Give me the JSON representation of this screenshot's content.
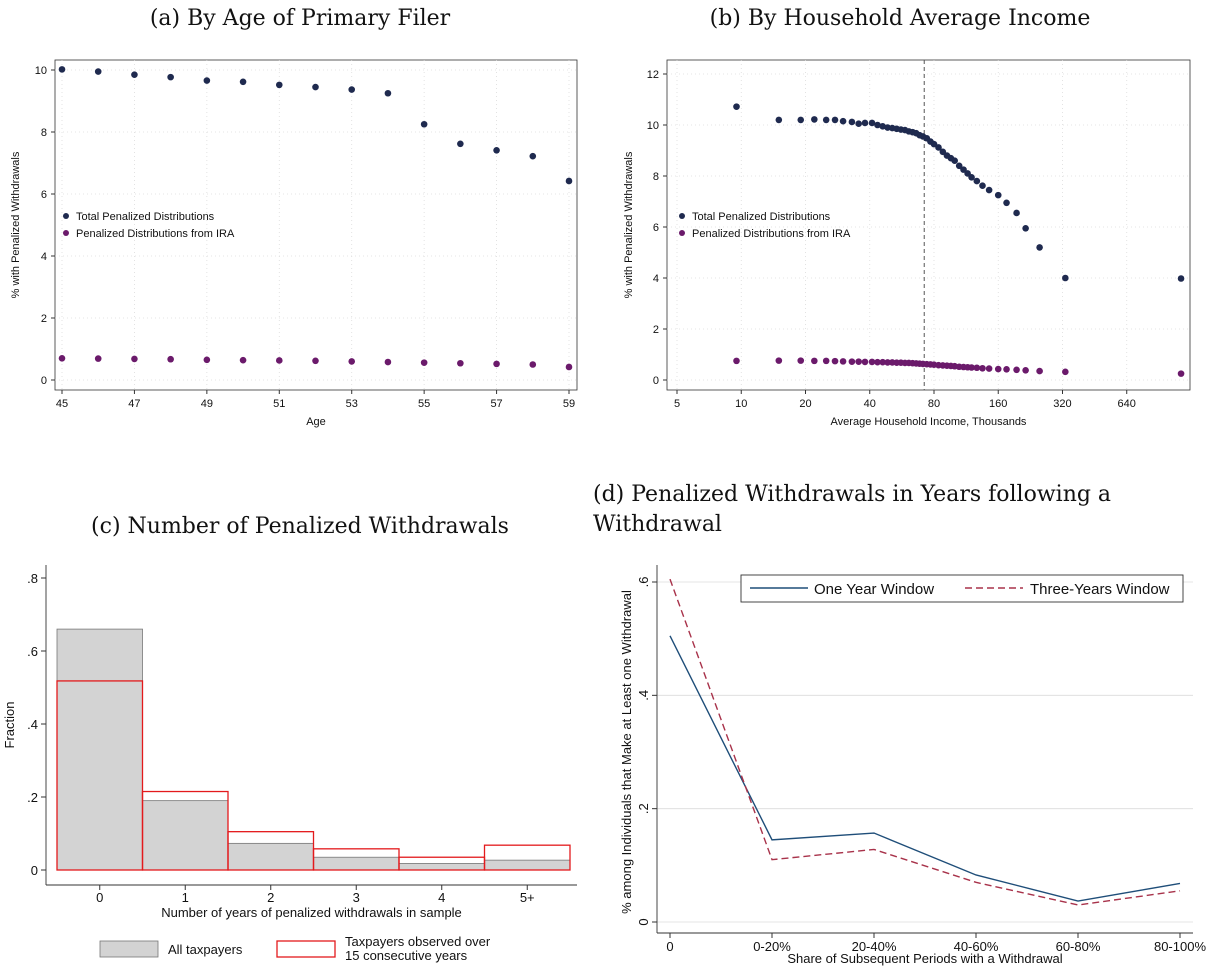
{
  "panels": {
    "a": {
      "title": "(a) By Age of Primary Filer"
    },
    "b": {
      "title": "(b) By Household Average Income"
    },
    "c": {
      "title": "(c) Number of Penalized Withdrawals"
    },
    "d": {
      "title": "(d) Penalized Withdrawals in Years following a Withdrawal"
    }
  },
  "colors": {
    "navy": "#1f2a4f",
    "purple": "#6b1a6b",
    "gray_bar": "#d3d3d3",
    "red": "#e31a1c",
    "line_solid": "#1f4e79",
    "line_dash": "#a8324a",
    "grid": "#dcdcdc"
  },
  "chart_data": [
    {
      "type": "scatter",
      "xlabel": "Age",
      "ylabel": "% with Penalized Withdrawals",
      "xlim": [
        45,
        59
      ],
      "ylim": [
        0,
        10
      ],
      "xticks": [
        "45",
        "47",
        "49",
        "51",
        "53",
        "55",
        "57",
        "59"
      ],
      "yticks": [
        "0",
        "2",
        "4",
        "6",
        "8",
        "10"
      ],
      "legend_position": "left-middle",
      "x": [
        45,
        46,
        47,
        48,
        49,
        50,
        51,
        52,
        53,
        54,
        55,
        56,
        57,
        58,
        59
      ],
      "series": [
        {
          "name": "Total Penalized Distributions",
          "color": "#1f2a4f",
          "values": [
            10.02,
            9.95,
            9.85,
            9.77,
            9.66,
            9.62,
            9.52,
            9.45,
            9.37,
            9.25,
            8.25,
            7.62,
            7.41,
            7.22,
            6.42
          ]
        },
        {
          "name": "Penalized Distributions from IRA",
          "color": "#6b1a6b",
          "values": [
            0.7,
            0.69,
            0.68,
            0.67,
            0.65,
            0.64,
            0.63,
            0.62,
            0.6,
            0.58,
            0.56,
            0.54,
            0.52,
            0.5,
            0.42
          ]
        }
      ]
    },
    {
      "type": "scatter",
      "xscale": "log2",
      "xlabel": "Average Household Income, Thousands",
      "ylabel": "% with Penalized Withdrawals",
      "xlim": [
        5,
        1200
      ],
      "ylim": [
        0,
        12
      ],
      "xticks": [
        "5",
        "10",
        "20",
        "40",
        "80",
        "160",
        "320",
        "640"
      ],
      "yticks": [
        "0",
        "2",
        "4",
        "6",
        "8",
        "10",
        "12"
      ],
      "vline": 72,
      "legend_position": "left-middle",
      "x": [
        9.5,
        15,
        19,
        22,
        25,
        27.5,
        30,
        33,
        35.5,
        38,
        41,
        43.5,
        46,
        48.5,
        51,
        53.5,
        56,
        58.5,
        61,
        63.5,
        66,
        68.5,
        71,
        74,
        77,
        80,
        84,
        88,
        92,
        96,
        100,
        105,
        110,
        115,
        120,
        127,
        135,
        145,
        160,
        175,
        195,
        215,
        250,
        330,
        1150
      ],
      "series": [
        {
          "name": "Total Penalized Distributions",
          "color": "#1f2a4f",
          "values": [
            10.72,
            10.2,
            10.2,
            10.22,
            10.2,
            10.2,
            10.15,
            10.12,
            10.05,
            10.08,
            10.08,
            10.0,
            9.95,
            9.9,
            9.88,
            9.85,
            9.82,
            9.8,
            9.75,
            9.72,
            9.68,
            9.6,
            9.55,
            9.48,
            9.35,
            9.25,
            9.12,
            8.95,
            8.8,
            8.7,
            8.6,
            8.4,
            8.25,
            8.1,
            7.95,
            7.8,
            7.62,
            7.45,
            7.25,
            6.95,
            6.55,
            5.95,
            5.2,
            4.0,
            3.98
          ]
        },
        {
          "name": "Penalized Distributions from IRA",
          "color": "#6b1a6b",
          "values": [
            0.75,
            0.76,
            0.76,
            0.75,
            0.75,
            0.74,
            0.73,
            0.72,
            0.72,
            0.71,
            0.71,
            0.7,
            0.7,
            0.69,
            0.69,
            0.68,
            0.68,
            0.67,
            0.67,
            0.66,
            0.65,
            0.64,
            0.63,
            0.62,
            0.61,
            0.6,
            0.58,
            0.57,
            0.56,
            0.55,
            0.54,
            0.52,
            0.51,
            0.5,
            0.49,
            0.48,
            0.46,
            0.45,
            0.43,
            0.42,
            0.4,
            0.38,
            0.35,
            0.32,
            0.25
          ]
        }
      ]
    },
    {
      "type": "bar",
      "xlabel": "Number of years of penalized withdrawals in sample",
      "ylabel": "Fraction",
      "ylim": [
        0,
        0.8
      ],
      "yticks": [
        "0",
        ".2",
        ".4",
        ".6",
        ".8"
      ],
      "categories": [
        "0",
        "1",
        "2",
        "3",
        "4",
        "5+"
      ],
      "legend_position": "bottom",
      "series": [
        {
          "name": "All taxpayers",
          "values": [
            0.66,
            0.19,
            0.073,
            0.035,
            0.018,
            0.027
          ]
        },
        {
          "name": "Taxpayers observed over 15 consecutive years",
          "values": [
            0.518,
            0.215,
            0.105,
            0.058,
            0.035,
            0.068
          ]
        }
      ]
    },
    {
      "type": "line",
      "xlabel": "Share of Subsequent Periods with a Withdrawal",
      "ylabel": "% among Individuals that Make at Least one Withdrawal",
      "ylim": [
        0,
        0.6
      ],
      "yticks": [
        "0",
        ".2",
        ".4",
        ".6"
      ],
      "categories": [
        "0",
        "0-20%",
        "20-40%",
        "40-60%",
        "60-80%",
        "80-100%"
      ],
      "legend_position": "top",
      "series": [
        {
          "name": "One Year Window",
          "style": "solid",
          "values": [
            0.505,
            0.145,
            0.157,
            0.083,
            0.037,
            0.068
          ]
        },
        {
          "name": "Three-Years Window",
          "style": "dashed",
          "values": [
            0.605,
            0.11,
            0.128,
            0.07,
            0.03,
            0.055
          ]
        }
      ]
    }
  ]
}
